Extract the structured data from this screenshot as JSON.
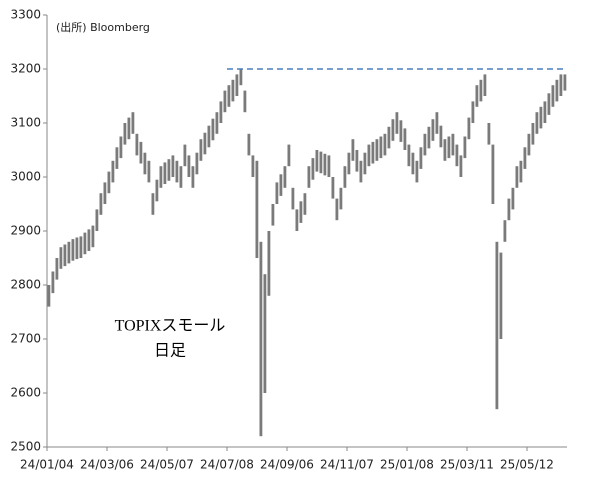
{
  "chart_data": {
    "type": "range_bar",
    "source": "(出所) Bloomberg",
    "annotation": [
      "TOPIXスモール",
      "日足"
    ],
    "color": "#7a7a7a",
    "reference_line": {
      "value": 3200,
      "color": "#4a7ebf"
    },
    "ylim": [
      2500,
      3300
    ],
    "yticks": [
      2500,
      2600,
      2700,
      2800,
      2900,
      3000,
      3100,
      3200,
      3300
    ],
    "categories": [
      "24/01/04",
      null,
      null,
      null,
      null,
      null,
      null,
      null,
      null,
      null,
      null,
      null,
      null,
      null,
      null,
      "24/03/06",
      null,
      null,
      null,
      null,
      null,
      null,
      null,
      null,
      null,
      null,
      null,
      null,
      null,
      null,
      "24/05/07",
      null,
      null,
      null,
      null,
      null,
      null,
      null,
      null,
      null,
      null,
      null,
      null,
      null,
      null,
      "24/07/08",
      null,
      null,
      null,
      null,
      null,
      null,
      null,
      null,
      null,
      null,
      null,
      null,
      null,
      null,
      "24/09/06",
      null,
      null,
      null,
      null,
      null,
      null,
      null,
      null,
      null,
      null,
      null,
      null,
      null,
      null,
      "24/11/07",
      null,
      null,
      null,
      null,
      null,
      null,
      null,
      null,
      null,
      null,
      null,
      null,
      null,
      null,
      "25/01/08",
      null,
      null,
      null,
      null,
      null,
      null,
      null,
      null,
      null,
      null,
      null,
      null,
      null,
      null,
      "25/03/11",
      null,
      null,
      null,
      null,
      null,
      null,
      null,
      null,
      null,
      null,
      null,
      null,
      null,
      null,
      "25/05/12",
      null,
      null,
      null,
      null,
      null,
      null,
      null,
      null,
      null
    ],
    "low": [
      2760,
      2785,
      2810,
      2830,
      2835,
      2840,
      2845,
      2848,
      2850,
      2857,
      2863,
      2870,
      2900,
      2930,
      2950,
      2970,
      2990,
      3015,
      3035,
      3060,
      3070,
      3080,
      3040,
      3025,
      3005,
      2990,
      2930,
      2955,
      2980,
      2987,
      2993,
      3000,
      2990,
      2980,
      3020,
      3000,
      2980,
      3005,
      3030,
      3042,
      3055,
      3068,
      3080,
      3100,
      3120,
      3130,
      3140,
      3150,
      3170,
      3120,
      3040,
      3000,
      2850,
      2520,
      2600,
      2780,
      2910,
      2950,
      2965,
      2980,
      3020,
      2940,
      2900,
      2915,
      2930,
      2980,
      2995,
      3010,
      3007,
      3003,
      3000,
      2960,
      2920,
      2940,
      2980,
      3005,
      3030,
      3010,
      2990,
      3005,
      3020,
      3025,
      3030,
      3035,
      3040,
      3053,
      3067,
      3080,
      3065,
      3050,
      3020,
      3005,
      2990,
      3015,
      3040,
      3053,
      3067,
      3080,
      3055,
      3030,
      3035,
      3040,
      3020,
      3000,
      3035,
      3070,
      3100,
      3130,
      3140,
      3150,
      3060,
      2950,
      2570,
      2700,
      2880,
      2920,
      2940,
      2980,
      2990,
      3015,
      3040,
      3060,
      3080,
      3090,
      3100,
      3115,
      3130,
      3140,
      3150,
      3160
    ],
    "high": [
      2800,
      2825,
      2850,
      2870,
      2875,
      2880,
      2885,
      2888,
      2890,
      2897,
      2903,
      2910,
      2940,
      2970,
      2990,
      3010,
      3030,
      3055,
      3075,
      3100,
      3110,
      3120,
      3080,
      3065,
      3045,
      3030,
      2970,
      2995,
      3020,
      3027,
      3033,
      3040,
      3030,
      3020,
      3060,
      3040,
      3020,
      3045,
      3070,
      3082,
      3095,
      3108,
      3120,
      3140,
      3160,
      3170,
      3180,
      3190,
      3200,
      3160,
      3080,
      3040,
      3030,
      2880,
      2820,
      2900,
      2950,
      2990,
      3005,
      3020,
      3060,
      2980,
      2940,
      2955,
      2970,
      3020,
      3035,
      3050,
      3047,
      3043,
      3040,
      3000,
      2960,
      2980,
      3020,
      3045,
      3070,
      3050,
      3030,
      3045,
      3060,
      3065,
      3070,
      3075,
      3080,
      3093,
      3107,
      3120,
      3105,
      3090,
      3060,
      3045,
      3030,
      3055,
      3080,
      3093,
      3107,
      3120,
      3095,
      3070,
      3075,
      3080,
      3060,
      3040,
      3075,
      3110,
      3140,
      3170,
      3180,
      3190,
      3100,
      3060,
      2880,
      2860,
      2920,
      2960,
      2980,
      3020,
      3030,
      3055,
      3080,
      3100,
      3120,
      3130,
      3140,
      3155,
      3170,
      3180,
      3190,
      3190
    ]
  }
}
